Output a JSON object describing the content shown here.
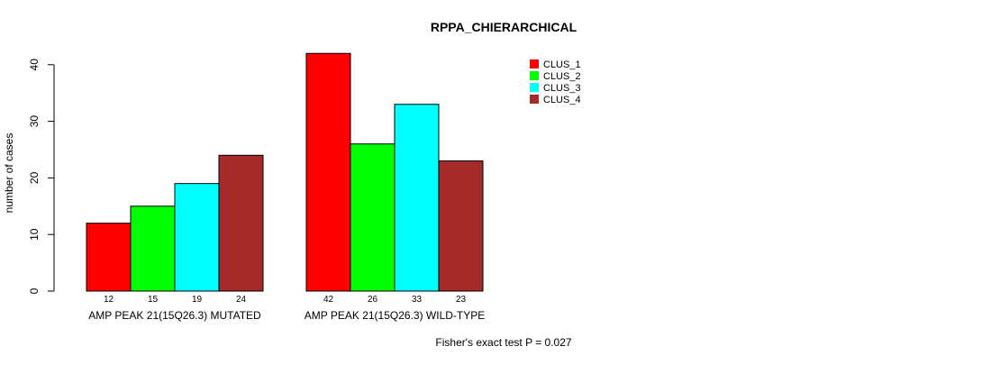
{
  "chart_data": {
    "type": "bar",
    "title": "RPPA_CHIERARCHICAL",
    "xlabel": "",
    "ylabel": "number of cases",
    "ylim": [
      0,
      42
    ],
    "yticks": [
      0,
      10,
      20,
      30,
      40
    ],
    "groups": [
      "AMP PEAK 21(15Q26.3) MUTATED",
      "AMP PEAK 21(15Q26.3) WILD-TYPE"
    ],
    "series": [
      {
        "name": "CLUS_1",
        "color": "#ff0000",
        "values": [
          12,
          42
        ]
      },
      {
        "name": "CLUS_2",
        "color": "#00ff00",
        "values": [
          15,
          26
        ]
      },
      {
        "name": "CLUS_3",
        "color": "#00ffff",
        "values": [
          19,
          33
        ]
      },
      {
        "name": "CLUS_4",
        "color": "#a52a2a",
        "values": [
          24,
          23
        ]
      }
    ],
    "legend_position": "top-right",
    "annotation": "Fisher's exact test P = 0.027"
  }
}
